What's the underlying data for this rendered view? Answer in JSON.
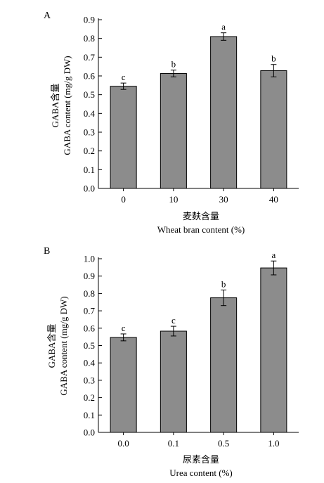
{
  "chart_data": [
    {
      "type": "bar",
      "panel_label": "A",
      "categories": [
        "0",
        "10",
        "30",
        "40"
      ],
      "values": [
        0.545,
        0.613,
        0.81,
        0.628
      ],
      "errors": [
        0.017,
        0.018,
        0.02,
        0.033
      ],
      "significance": [
        "c",
        "b",
        "a",
        "b"
      ],
      "ylim": [
        0,
        0.9
      ],
      "yticks": [
        "0.0",
        "0.1",
        "0.2",
        "0.3",
        "0.4",
        "0.5",
        "0.6",
        "0.7",
        "0.8",
        "0.9"
      ],
      "xlabel_cn": "麦麸含量",
      "xlabel_en": "Wheat bran content (%)",
      "ylabel_cn": "GABA含量",
      "ylabel_en": "GABA content (mg/g DW)",
      "bar_color": "#8c8c8c"
    },
    {
      "type": "bar",
      "panel_label": "B",
      "categories": [
        "0.0",
        "0.1",
        "0.5",
        "1.0"
      ],
      "values": [
        0.547,
        0.583,
        0.775,
        0.947
      ],
      "errors": [
        0.02,
        0.028,
        0.045,
        0.04
      ],
      "significance": [
        "c",
        "c",
        "b",
        "a"
      ],
      "ylim": [
        0,
        1.0
      ],
      "yticks": [
        "0.0",
        "0.1",
        "0.2",
        "0.3",
        "0.4",
        "0.5",
        "0.6",
        "0.7",
        "0.8",
        "0.9",
        "1.0"
      ],
      "xlabel_cn": "尿素含量",
      "xlabel_en": "Urea content (%)",
      "ylabel_cn": "GABA含量",
      "ylabel_en": "GABA content (mg/g DW)",
      "bar_color": "#8c8c8c"
    }
  ]
}
